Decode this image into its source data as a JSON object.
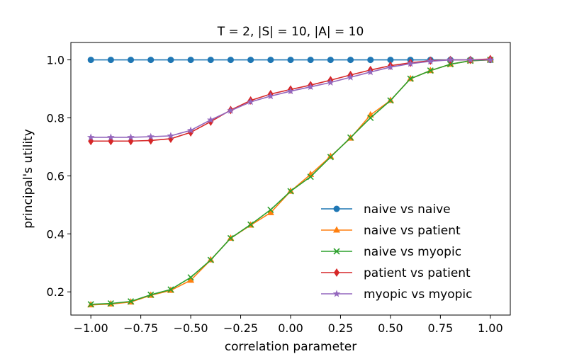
{
  "chart_data": {
    "type": "line",
    "title": "T = 2, |S| = 10, |A| = 10",
    "xlabel": "correlation parameter",
    "ylabel": "principal's utility",
    "xlim": [
      -1.1,
      1.1
    ],
    "ylim": [
      0.12,
      1.06
    ],
    "xticks": [
      -1.0,
      -0.75,
      -0.5,
      -0.25,
      0.0,
      0.25,
      0.5,
      0.75,
      1.0
    ],
    "xtick_labels": [
      "−1.00",
      "−0.75",
      "−0.50",
      "−0.25",
      "0.00",
      "0.25",
      "0.50",
      "0.75",
      "1.00"
    ],
    "yticks": [
      0.2,
      0.4,
      0.6,
      0.8,
      1.0
    ],
    "ytick_labels": [
      "0.2",
      "0.4",
      "0.6",
      "0.8",
      "1.0"
    ],
    "grid": false,
    "legend_position": "lower-right",
    "x": [
      -1.0,
      -0.9,
      -0.8,
      -0.7,
      -0.6,
      -0.5,
      -0.4,
      -0.3,
      -0.2,
      -0.1,
      0.0,
      0.1,
      0.2,
      0.3,
      0.4,
      0.5,
      0.6,
      0.7,
      0.8,
      0.9,
      1.0
    ],
    "series": [
      {
        "name": "naive vs naive",
        "color": "#1f77b4",
        "marker": "circle",
        "values": [
          1.0,
          1.0,
          1.0,
          1.0,
          1.0,
          1.0,
          1.0,
          1.0,
          1.0,
          1.0,
          1.0,
          1.0,
          1.0,
          1.0,
          1.0,
          1.0,
          1.0,
          1.0,
          1.0,
          1.0,
          1.0
        ]
      },
      {
        "name": "naive vs patient",
        "color": "#ff7f0e",
        "marker": "triangle",
        "values": [
          0.155,
          0.158,
          0.165,
          0.188,
          0.205,
          0.24,
          0.31,
          0.385,
          0.43,
          0.473,
          0.547,
          0.605,
          0.667,
          0.73,
          0.81,
          0.86,
          0.935,
          0.963,
          0.985,
          0.997,
          1.0
        ]
      },
      {
        "name": "naive vs myopic",
        "color": "#2ca02c",
        "marker": "x",
        "values": [
          0.157,
          0.16,
          0.167,
          0.19,
          0.208,
          0.25,
          0.31,
          0.385,
          0.432,
          0.483,
          0.547,
          0.597,
          0.665,
          0.732,
          0.8,
          0.86,
          0.935,
          0.963,
          0.985,
          0.997,
          1.0
        ]
      },
      {
        "name": "patient vs patient",
        "color": "#d62728",
        "marker": "diamond",
        "values": [
          0.72,
          0.72,
          0.72,
          0.722,
          0.728,
          0.75,
          0.787,
          0.827,
          0.86,
          0.882,
          0.898,
          0.913,
          0.93,
          0.948,
          0.965,
          0.98,
          0.99,
          0.997,
          1.0,
          1.0,
          1.003
        ]
      },
      {
        "name": "myopic vs myopic",
        "color": "#9467bd",
        "marker": "star",
        "values": [
          0.733,
          0.733,
          0.733,
          0.735,
          0.738,
          0.757,
          0.793,
          0.825,
          0.855,
          0.875,
          0.892,
          0.907,
          0.922,
          0.94,
          0.958,
          0.975,
          0.987,
          0.995,
          1.0,
          1.0,
          1.0
        ]
      }
    ]
  }
}
